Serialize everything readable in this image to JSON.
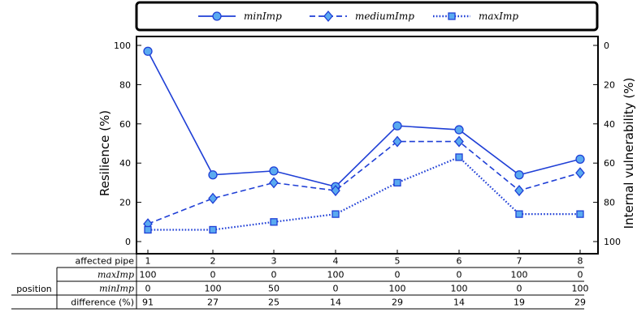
{
  "chart_data": {
    "type": "line",
    "x": [
      1,
      2,
      3,
      4,
      5,
      6,
      7,
      8
    ],
    "ylabel": "Resilience (%)",
    "ylim": [
      0,
      100
    ],
    "y_ticks": [
      0,
      20,
      40,
      60,
      80,
      100
    ],
    "y2label": "Internal vulnerability (%)",
    "y2lim": [
      100,
      0
    ],
    "y2_ticks": [
      0,
      20,
      40,
      60,
      80,
      100
    ],
    "grid": false,
    "legend_position": "top",
    "series": [
      {
        "name": "minImp",
        "style": "solid",
        "marker": "circle",
        "values": [
          97,
          34,
          36,
          28,
          59,
          57,
          34,
          42
        ]
      },
      {
        "name": "mediumImp",
        "style": "dashed",
        "marker": "diamond",
        "values": [
          9,
          22,
          30,
          26,
          51,
          51,
          26,
          35
        ]
      },
      {
        "name": "maxImp",
        "style": "dotted",
        "marker": "square",
        "values": [
          6,
          6,
          10,
          14,
          30,
          43,
          14,
          14
        ]
      }
    ],
    "colors": {
      "line": "#1f3fd6",
      "fill": "#5aaaf0"
    }
  },
  "table": {
    "group_label": "position",
    "rows": [
      {
        "label": "affected pipe",
        "italic": false,
        "values": [
          "1",
          "2",
          "3",
          "4",
          "5",
          "6",
          "7",
          "8"
        ]
      },
      {
        "label": "maxImp",
        "italic": true,
        "values": [
          "100",
          "0",
          "0",
          "100",
          "0",
          "0",
          "100",
          "0"
        ]
      },
      {
        "label": "minImp",
        "italic": true,
        "values": [
          "0",
          "100",
          "50",
          "0",
          "100",
          "100",
          "0",
          "100"
        ]
      },
      {
        "label": "difference (%)",
        "italic": false,
        "values": [
          "91",
          "27",
          "25",
          "14",
          "29",
          "14",
          "19",
          "29"
        ]
      }
    ]
  }
}
